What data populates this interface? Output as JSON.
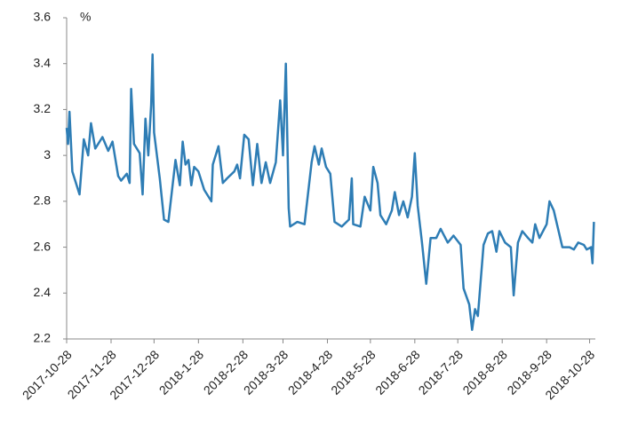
{
  "chart_data": {
    "type": "line",
    "unit": "%",
    "x": [
      "2017-10-28",
      "2017-10-29",
      "2017-10-30",
      "2017-11-1",
      "2017-11-6",
      "2017-11-9",
      "2017-11-12",
      "2017-11-14",
      "2017-11-17",
      "2017-11-22",
      "2017-11-26",
      "2017-11-29",
      "2017-12-3",
      "2017-12-5",
      "2017-12-9",
      "2017-12-11",
      "2017-12-12",
      "2017-12-14",
      "2017-12-18",
      "2017-12-20",
      "2017-12-22",
      "2017-12-24",
      "2017-12-26",
      "2017-12-27",
      "2017-12-28",
      "2018-1-1",
      "2018-1-4",
      "2018-1-7",
      "2018-1-12",
      "2018-1-15",
      "2018-1-17",
      "2018-1-19",
      "2018-1-21",
      "2018-1-23",
      "2018-1-25",
      "2018-1-28",
      "2018-2-1",
      "2018-2-6",
      "2018-2-7",
      "2018-2-11",
      "2018-2-14",
      "2018-2-17",
      "2018-2-22",
      "2018-2-24",
      "2018-2-26",
      "2018-3-1",
      "2018-3-4",
      "2018-3-7",
      "2018-3-10",
      "2018-3-13",
      "2018-3-16",
      "2018-3-19",
      "2018-3-23",
      "2018-3-26",
      "2018-3-28",
      "2018-3-30",
      "2018-4-1",
      "2018-4-2",
      "2018-4-7",
      "2018-4-12",
      "2018-4-17",
      "2018-4-19",
      "2018-4-22",
      "2018-4-24",
      "2018-4-27",
      "2018-4-30",
      "2018-5-3",
      "2018-5-8",
      "2018-5-13",
      "2018-5-15",
      "2018-5-16",
      "2018-5-21",
      "2018-5-24",
      "2018-5-28",
      "2018-5-30",
      "2018-6-2",
      "2018-6-4",
      "2018-6-8",
      "2018-6-12",
      "2018-6-14",
      "2018-6-17",
      "2018-6-20",
      "2018-6-23",
      "2018-6-26",
      "2018-6-28",
      "2018-6-30",
      "2018-7-3",
      "2018-7-6",
      "2018-7-9",
      "2018-7-13",
      "2018-7-16",
      "2018-7-21",
      "2018-7-25",
      "2018-7-30",
      "2018-8-1",
      "2018-8-5",
      "2018-8-7",
      "2018-8-9",
      "2018-8-11",
      "2018-8-15",
      "2018-8-18",
      "2018-8-21",
      "2018-8-24",
      "2018-8-26",
      "2018-8-30",
      "2018-9-3",
      "2018-9-5",
      "2018-9-8",
      "2018-9-11",
      "2018-9-15",
      "2018-9-18",
      "2018-9-20",
      "2018-9-23",
      "2018-9-28",
      "2018-9-30",
      "2018-10-3",
      "2018-10-9",
      "2018-10-14",
      "2018-10-17",
      "2018-10-20",
      "2018-10-24",
      "2018-10-26",
      "2018-10-29",
      "2018-10-30",
      "2018-10-31"
    ],
    "series": [
      {
        "color": "#2e7db5",
        "values": [
          3.12,
          3.05,
          3.19,
          2.93,
          2.83,
          3.07,
          3.0,
          3.14,
          3.03,
          3.08,
          3.02,
          3.06,
          2.91,
          2.89,
          2.92,
          2.88,
          3.29,
          3.05,
          3.01,
          2.83,
          3.16,
          3.0,
          3.22,
          3.44,
          3.1,
          2.9,
          2.72,
          2.71,
          2.98,
          2.87,
          3.06,
          2.96,
          2.98,
          2.87,
          2.95,
          2.93,
          2.85,
          2.8,
          2.96,
          3.04,
          2.88,
          2.9,
          2.93,
          2.96,
          2.9,
          3.09,
          3.07,
          2.87,
          3.05,
          2.88,
          2.97,
          2.88,
          2.97,
          3.24,
          3.0,
          3.4,
          2.77,
          2.69,
          2.71,
          2.7,
          2.97,
          3.04,
          2.96,
          3.03,
          2.95,
          2.92,
          2.71,
          2.69,
          2.72,
          2.9,
          2.7,
          2.69,
          2.82,
          2.76,
          2.95,
          2.88,
          2.74,
          2.7,
          2.76,
          2.84,
          2.74,
          2.8,
          2.73,
          2.82,
          3.01,
          2.78,
          2.62,
          2.44,
          2.64,
          2.64,
          2.68,
          2.62,
          2.65,
          2.61,
          2.42,
          2.35,
          2.24,
          2.33,
          2.3,
          2.61,
          2.66,
          2.67,
          2.58,
          2.67,
          2.62,
          2.6,
          2.39,
          2.62,
          2.67,
          2.64,
          2.62,
          2.7,
          2.64,
          2.7,
          2.8,
          2.76,
          2.6,
          2.6,
          2.59,
          2.62,
          2.61,
          2.59,
          2.6,
          2.53,
          2.71
        ]
      }
    ],
    "xlim": [
      "2017-10-28",
      "2018-11-1"
    ],
    "xticks": [
      "2017-10-28",
      "2017-11-28",
      "2017-12-28",
      "2018-1-28",
      "2018-2-28",
      "2018-3-28",
      "2018-4-28",
      "2018-5-28",
      "2018-6-28",
      "2018-7-28",
      "2018-8-28",
      "2018-9-28",
      "2018-10-28"
    ],
    "ylim": [
      2.2,
      3.6
    ],
    "yticks": [
      2.2,
      2.4,
      2.6,
      2.8,
      3,
      3.2,
      3.4,
      3.6
    ],
    "grid": false
  }
}
